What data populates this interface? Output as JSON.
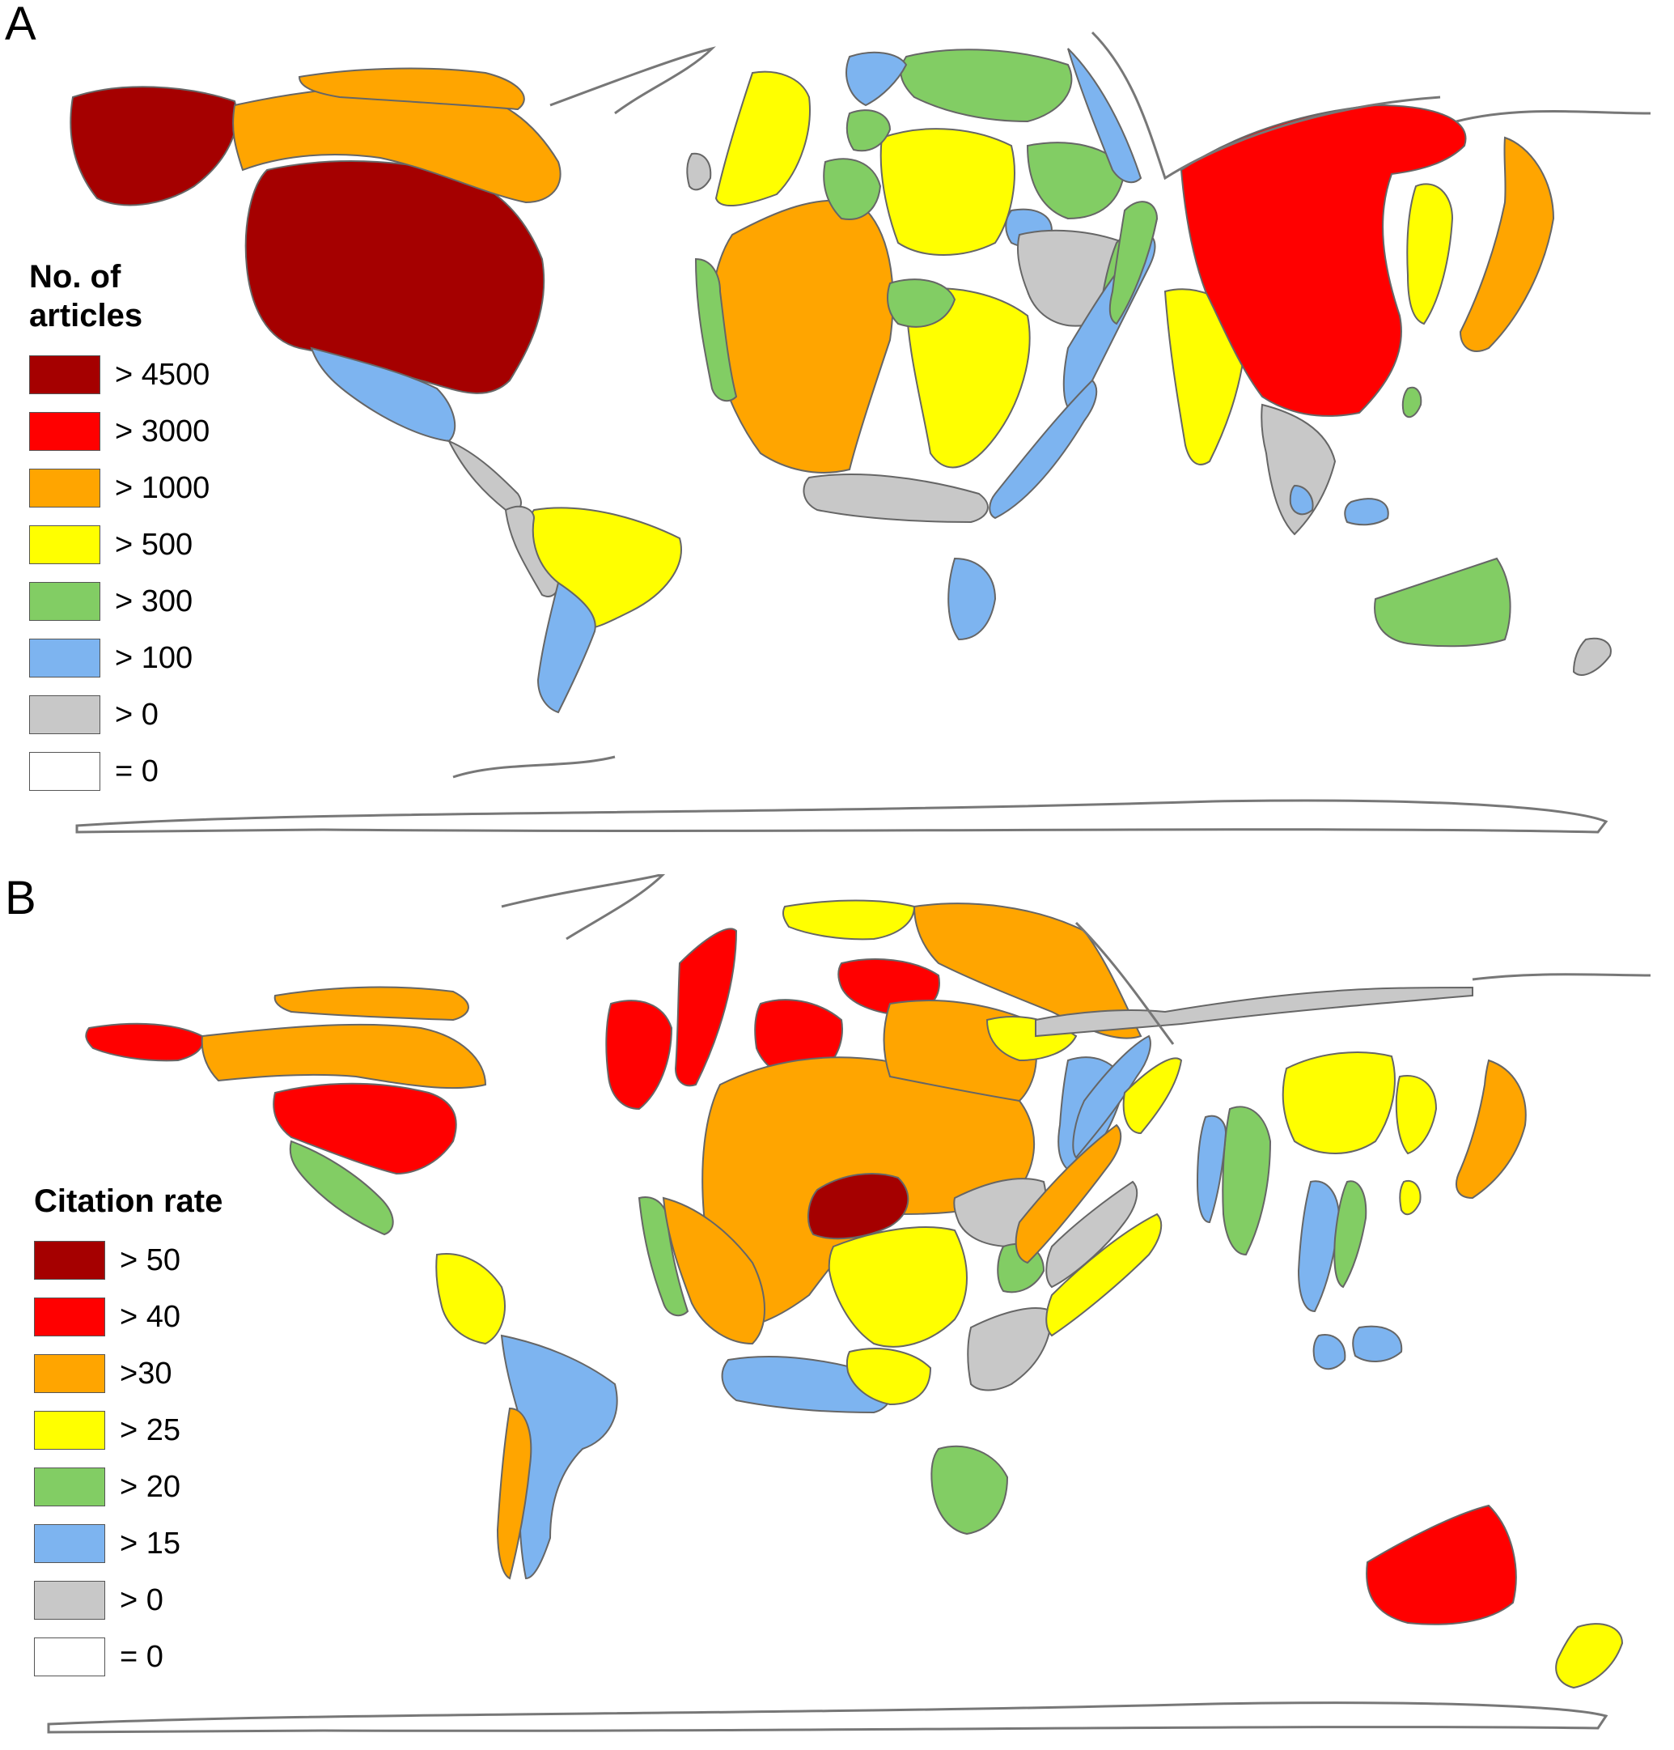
{
  "colors": {
    "c4500": "#a50000",
    "c3000": "#ff0000",
    "c1000": "#ffa500",
    "c500": "#ffff00",
    "c300": "#82cd64",
    "c100": "#7db4f0",
    "c0": "#c8c8c8",
    "none": "#ffffff"
  },
  "panel_a": {
    "letter": "A",
    "legend": {
      "title_line1": "No. of",
      "title_line2": "articles",
      "items": [
        {
          "label": "> 4500",
          "color": "#a50000"
        },
        {
          "label": "> 3000",
          "color": "#ff0000"
        },
        {
          "label": "> 1000",
          "color": "#ffa500"
        },
        {
          "label": "> 500",
          "color": "#ffff00"
        },
        {
          "label": "> 300",
          "color": "#82cd64"
        },
        {
          "label": "> 100",
          "color": "#7db4f0"
        },
        {
          "label": "> 0",
          "color": "#c8c8c8"
        },
        {
          "label": "= 0",
          "color": "#ffffff"
        }
      ]
    }
  },
  "panel_b": {
    "letter": "B",
    "legend": {
      "title": "Citation rate",
      "items": [
        {
          "label": "> 50",
          "color": "#a50000"
        },
        {
          "label": "> 40",
          "color": "#ff0000"
        },
        {
          "label": ">30",
          "color": "#ffa500"
        },
        {
          "label": "> 25",
          "color": "#ffff00"
        },
        {
          "label": "> 20",
          "color": "#82cd64"
        },
        {
          "label": "> 15",
          "color": "#7db4f0"
        },
        {
          "label": "> 0",
          "color": "#c8c8c8"
        },
        {
          "label": "= 0",
          "color": "#ffffff"
        }
      ]
    }
  }
}
